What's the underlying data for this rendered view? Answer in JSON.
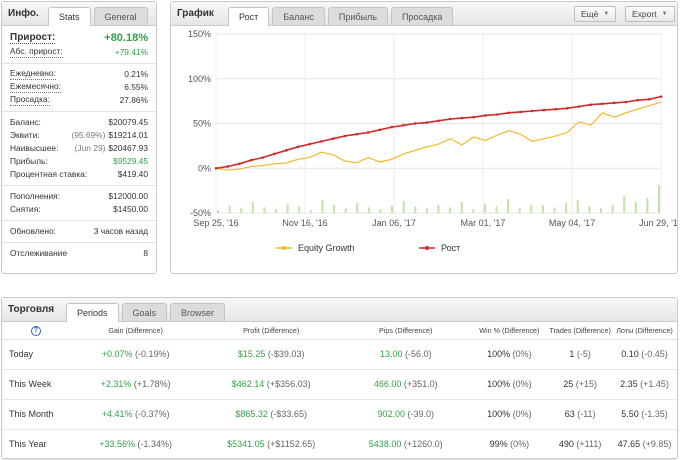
{
  "info": {
    "title": "Инфо.",
    "tabs": [
      "Stats",
      "General"
    ],
    "growth_label": "Прирост:",
    "growth_value": "+80.18%",
    "abs_growth_label": "Абс. прирост:",
    "abs_growth_value": "+79.41%",
    "daily_label": "Ежедневно:",
    "daily_value": "0.21%",
    "monthly_label": "Ежемесячно:",
    "monthly_value": "6.55%",
    "drawdown_label": "Просадка:",
    "drawdown_value": "27.86%",
    "balance_label": "Баланс:",
    "balance_value": "$20079.45",
    "equity_label": "Эквити:",
    "equity_note": "(95.69%)",
    "equity_value": "$19214.01",
    "highest_label": "Наивысшее:",
    "highest_note": "(Jun 29)",
    "highest_value": "$20467.93",
    "profit_label": "Прибыль:",
    "profit_value": "$9529.45",
    "interest_label": "Процентная ставка:",
    "interest_value": "$419.40",
    "deposits_label": "Пополнения:",
    "deposits_value": "$12000.00",
    "withdrawals_label": "Снятия:",
    "withdrawals_value": "$1450.00",
    "updated_label": "Обновлено:",
    "updated_value": "3 часов назад",
    "tracking_label": "Отслеживание",
    "tracking_value": "8"
  },
  "chart_panel": {
    "title": "График",
    "tabs": [
      "Рост",
      "Баланс",
      "Прибыль",
      "Просадка"
    ],
    "more_button": "Ещё",
    "export_button": "Export"
  },
  "chart_data": {
    "type": "line",
    "x_ticks": [
      "Sep 25, '16",
      "Nov 16, '16",
      "Jan 06, '17",
      "Mar 01, '17",
      "May 04, '17",
      "Jun 29, '17"
    ],
    "y_ticks": [
      "150%",
      "100%",
      "50%",
      "0%",
      "-50%"
    ],
    "ylim": [
      -50,
      150
    ],
    "series": [
      {
        "name": "Equity Growth",
        "color": "#f2b51f",
        "values": [
          0,
          -2,
          -1,
          2,
          3,
          5,
          6,
          10,
          12,
          18,
          15,
          8,
          6,
          12,
          7,
          10,
          16,
          20,
          24,
          27,
          33,
          26,
          35,
          31,
          37,
          42,
          38,
          30,
          33,
          36,
          40,
          52,
          48,
          62,
          57,
          62,
          66,
          70,
          74
        ]
      },
      {
        "name": "Рост",
        "color": "#cc2a2a",
        "values": [
          0,
          2,
          5,
          9,
          12,
          16,
          20,
          24,
          27,
          30,
          33,
          36,
          38,
          40,
          43,
          46,
          48,
          50,
          51,
          53,
          55,
          56,
          57,
          59,
          60,
          62,
          63,
          64,
          65,
          66,
          67,
          69,
          71,
          72,
          73,
          74,
          76,
          77,
          80
        ]
      }
    ],
    "volume_bars": [
      3,
      8,
      5,
      12,
      6,
      4,
      10,
      7,
      3,
      14,
      9,
      5,
      11,
      6,
      4,
      8,
      13,
      7,
      5,
      9,
      6,
      12,
      4,
      10,
      7,
      15,
      5,
      9,
      8,
      6,
      11,
      14,
      7,
      5,
      9,
      18,
      12,
      16,
      30
    ],
    "grid": true,
    "legend": "bottom"
  },
  "trading": {
    "title": "Торговля",
    "tabs": [
      "Periods",
      "Goals",
      "Browser"
    ],
    "help_icon": "?",
    "columns": [
      "Gain (Difference)",
      "Profit (Difference)",
      "Pips (Difference)",
      "Win % (Difference)",
      "Trades (Difference)",
      "Лоты (Difference)"
    ],
    "rows": [
      {
        "period": "Today",
        "gain": "+0.07%",
        "gain_diff": "(-0.19%)",
        "profit": "$15.25",
        "profit_diff": "(-$39.03)",
        "pips": "13.00",
        "pips_diff": "(-56.0)",
        "win": "100%",
        "win_diff": "(0%)",
        "trades": "1",
        "trades_diff": "(-5)",
        "lots": "0.10",
        "lots_diff": "(-0.45)"
      },
      {
        "period": "This Week",
        "gain": "+2.31%",
        "gain_diff": "(+1.78%)",
        "profit": "$462.14",
        "profit_diff": "(+$356.03)",
        "pips": "466.00",
        "pips_diff": "(+351.0)",
        "win": "100%",
        "win_diff": "(0%)",
        "trades": "25",
        "trades_diff": "(+15)",
        "lots": "2.35",
        "lots_diff": "(+1.45)"
      },
      {
        "period": "This Month",
        "gain": "+4.41%",
        "gain_diff": "(-0.37%)",
        "profit": "$865.32",
        "profit_diff": "(-$33.65)",
        "pips": "902.00",
        "pips_diff": "(-39.0)",
        "win": "100%",
        "win_diff": "(0%)",
        "trades": "63",
        "trades_diff": "(-11)",
        "lots": "5.50",
        "lots_diff": "(-1.35)"
      },
      {
        "period": "This Year",
        "gain": "+33.56%",
        "gain_diff": "(-1.34%)",
        "profit": "$5341.05",
        "profit_diff": "(+$1152.65)",
        "pips": "5438.00",
        "pips_diff": "(+1260.0)",
        "win": "99%",
        "win_diff": "(0%)",
        "trades": "490",
        "trades_diff": "(+111)",
        "lots": "47.65",
        "lots_diff": "(+9.85)"
      }
    ]
  }
}
